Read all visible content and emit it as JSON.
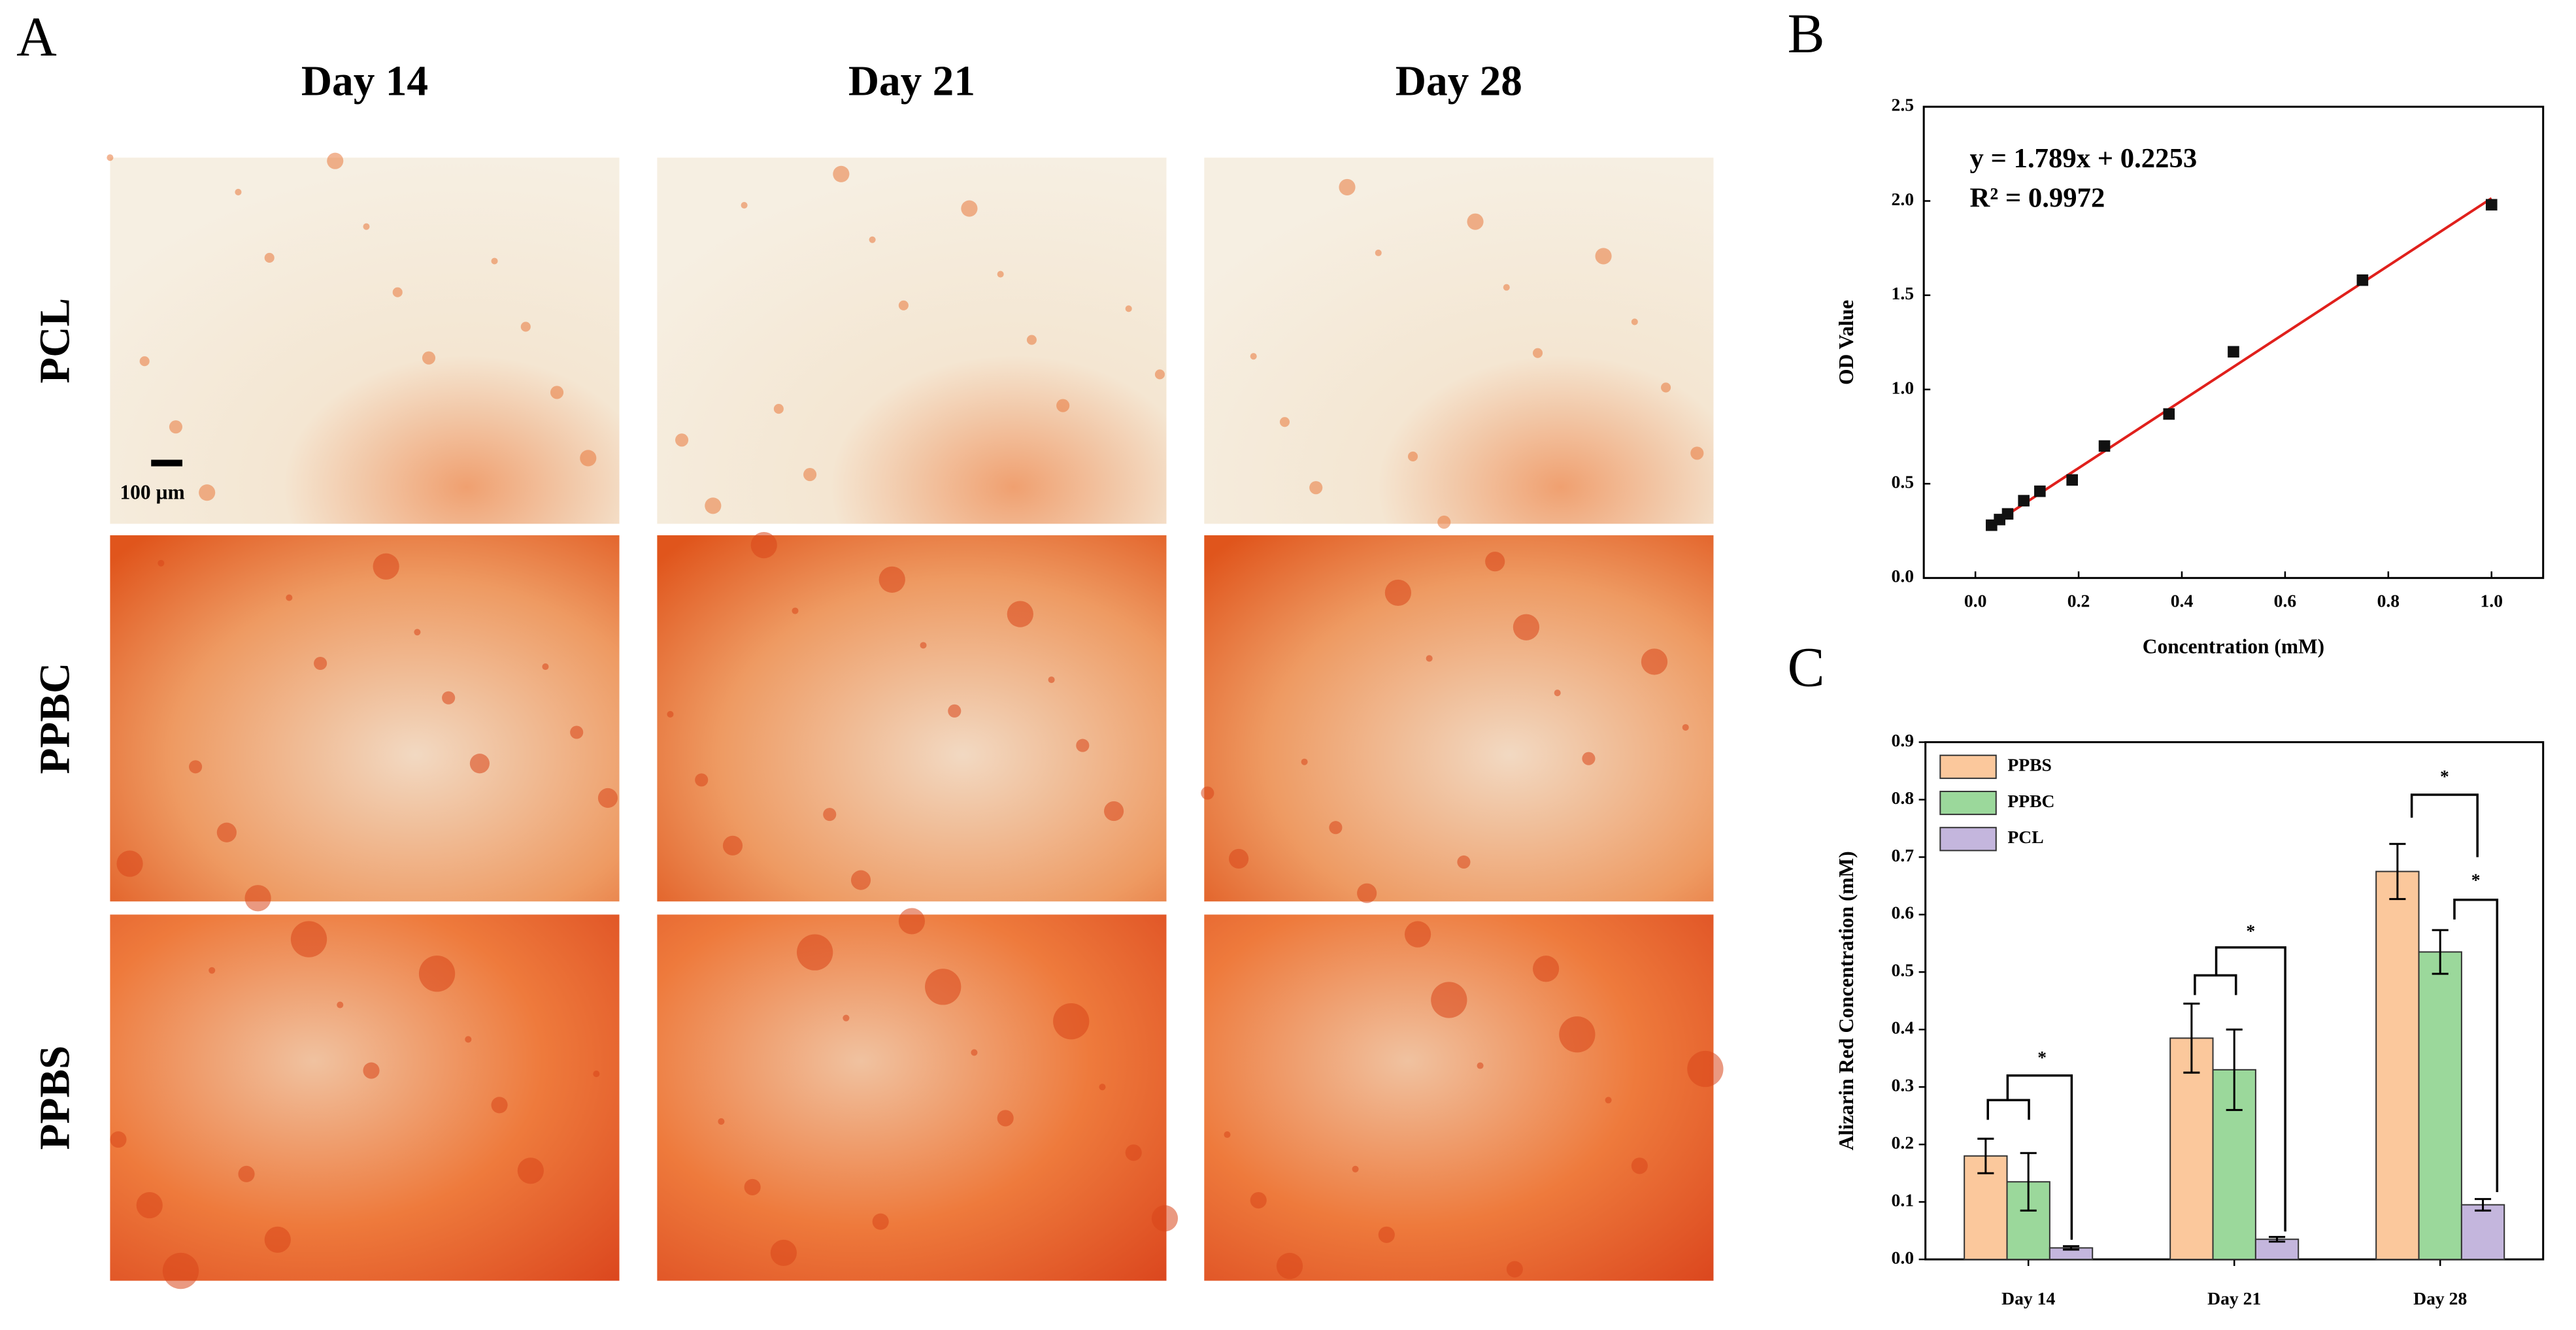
{
  "panels": {
    "a": "A",
    "b": "B",
    "c": "C"
  },
  "photo_grid": {
    "columns": [
      "Day 14",
      "Day 21",
      "Day 28"
    ],
    "rows": [
      "PCL",
      "PPBC",
      "PPBS"
    ],
    "scale_bar": "100 µm"
  },
  "chart_data": [
    {
      "type": "scatter",
      "x": [
        0.03125,
        0.046875,
        0.0625,
        0.09375,
        0.125,
        0.1875,
        0.25,
        0.375,
        0.5,
        0.75,
        1.0
      ],
      "values": [
        0.28,
        0.31,
        0.34,
        0.41,
        0.46,
        0.52,
        0.7,
        0.87,
        1.2,
        1.58,
        1.98
      ],
      "color": "#111111",
      "fit": {
        "slope": 1.789,
        "intercept": 0.2253,
        "color": "#e0201c"
      },
      "annotations": [
        "y = 1.789x + 0.2253",
        "R² = 0.9972"
      ],
      "xlabel": "Concentration (mM)",
      "ylabel": "OD Value",
      "xlim": [
        -0.1,
        1.1
      ],
      "ylim": [
        0,
        2.5
      ],
      "xticks": [
        {
          "value": 0,
          "label": "0.0"
        },
        0.2,
        0.4,
        0.6,
        0.8,
        {
          "value": 1,
          "label": "1.0"
        }
      ],
      "yticks": [
        {
          "value": 0,
          "label": "0.0"
        },
        0.5,
        {
          "value": 1,
          "label": "1.0"
        },
        1.5,
        {
          "value": 2,
          "label": "2.0"
        },
        2.5
      ]
    },
    {
      "type": "bar",
      "categories": [
        "Day 14",
        "Day 21",
        "Day 28"
      ],
      "series": [
        {
          "name": "PPBS",
          "color": "#fbc89c",
          "values": [
            0.18,
            0.385,
            0.675
          ],
          "errors": [
            0.03,
            0.06,
            0.048
          ]
        },
        {
          "name": "PPBC",
          "color": "#9bd89b",
          "values": [
            0.135,
            0.33,
            0.535
          ],
          "errors": [
            0.05,
            0.07,
            0.038
          ]
        },
        {
          "name": "PCL",
          "color": "#c4b6dd",
          "values": [
            0.02,
            0.035,
            0.095
          ],
          "errors": [
            0.003,
            0.004,
            0.01
          ]
        }
      ],
      "ylabel": "Alizarin Red Concentration (mM)",
      "ylim": [
        0,
        0.9
      ],
      "yticks": [
        {
          "value": 0,
          "label": "0.0"
        },
        0.1,
        0.2,
        0.3,
        0.4,
        0.5,
        0.6,
        0.7,
        0.8,
        0.9
      ],
      "legend": "upper left",
      "significance_labels": [
        "*",
        "*",
        "*",
        "*"
      ]
    }
  ]
}
